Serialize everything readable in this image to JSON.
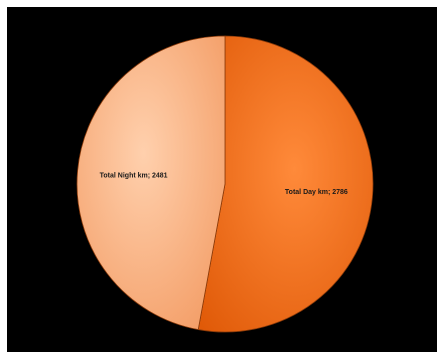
{
  "chart_data": {
    "type": "pie",
    "slices": [
      {
        "label": "Total Day km; 2786",
        "category": "Total Day km",
        "value": 2786,
        "color": "#f26a12"
      },
      {
        "label": "Total Night km; 2481",
        "category": "Total Night km",
        "value": 2481,
        "color": "#f7a877"
      }
    ],
    "start_angle_deg": 0,
    "direction": "clockwise",
    "data_labels": "inside",
    "legend": "none",
    "background_color": "#000000"
  }
}
